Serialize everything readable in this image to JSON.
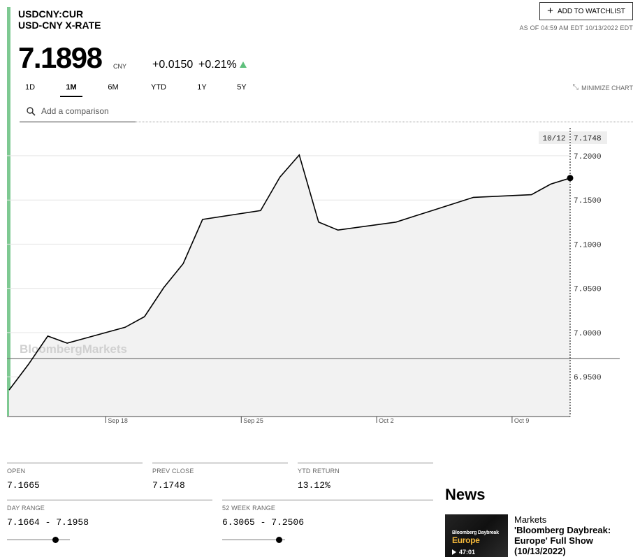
{
  "header": {
    "ticker": "USDCNY:CUR",
    "name": "USD-CNY X-RATE",
    "price": "7.1898",
    "currency": "CNY",
    "change": "+0.0150",
    "change_pct": "+0.21%",
    "watchlist_label": "ADD TO WATCHLIST",
    "as_of": "AS OF 04:59 AM EDT 10/13/2022 EDT"
  },
  "ranges": {
    "items": [
      "1D",
      "1M",
      "6M",
      "YTD",
      "1Y",
      "5Y"
    ],
    "active": "1M"
  },
  "minimize_label": "MINIMIZE CHART",
  "compare": {
    "placeholder": "Add a comparison"
  },
  "colors": {
    "accent": "#7ec992",
    "up": "#5fc07c"
  },
  "chart_data": {
    "type": "area",
    "watermark": "BloombergMarkets",
    "x": [
      "9/13",
      "9/14",
      "9/15",
      "9/16",
      "9/19",
      "9/20",
      "9/21",
      "9/22",
      "9/23",
      "9/26",
      "9/27",
      "9/28",
      "9/29",
      "9/30",
      "10/3",
      "10/4",
      "10/5",
      "10/6",
      "10/7",
      "10/10",
      "10/11",
      "10/12"
    ],
    "values": [
      6.935,
      6.964,
      6.996,
      6.988,
      7.006,
      7.018,
      7.051,
      7.078,
      7.128,
      7.138,
      7.176,
      7.201,
      7.125,
      7.116,
      7.125,
      7.132,
      7.139,
      7.146,
      7.153,
      7.156,
      7.168,
      7.1748
    ],
    "ylim": [
      6.905,
      7.23
    ],
    "y_ticks": [
      "7.2000",
      "7.1500",
      "7.1000",
      "7.0500",
      "7.0000",
      "6.9500"
    ],
    "x_ticks": [
      "Sep 18",
      "Sep 25",
      "Oct 2",
      "Oct 9"
    ],
    "crosshair": {
      "date": "10/12",
      "value": "7.1748"
    },
    "grid": true
  },
  "stats": {
    "open": {
      "label": "OPEN",
      "value": "7.1665"
    },
    "prev_close": {
      "label": "PREV CLOSE",
      "value": "7.1748"
    },
    "ytd_return": {
      "label": "YTD RETURN",
      "value": "13.12%"
    },
    "day_range": {
      "label": "DAY RANGE",
      "value": "7.1664 - 7.1958",
      "position": 0.77
    },
    "week52_range": {
      "label": "52 WEEK RANGE",
      "value": "6.3065 - 7.2506",
      "position": 0.9
    }
  },
  "news": {
    "title": "News",
    "thumb_line1": "Bloomberg Daybreak",
    "thumb_line2": "Europe",
    "thumb_duration": "47:01",
    "category": "Markets",
    "headline": "'Bloomberg Daybreak: Europe' Full Show (10/13/2022)"
  }
}
